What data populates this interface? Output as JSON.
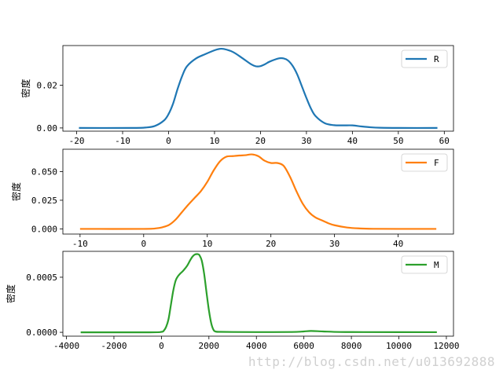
{
  "chart_data": [
    {
      "type": "line",
      "color": "#1f77b4",
      "legend": "R",
      "ylabel": "密度",
      "xlim": [
        -23,
        62
      ],
      "ylim": [
        -0.0015,
        0.0385
      ],
      "xticks": [
        -20,
        -10,
        0,
        10,
        20,
        30,
        40,
        50,
        60
      ],
      "yticks": [
        0.0,
        0.02
      ],
      "ytick_labels": [
        "0.00",
        "0.02"
      ],
      "x": [
        -19.5,
        -8,
        -5,
        -3,
        -1,
        0,
        1,
        2,
        3,
        4,
        6,
        8,
        10,
        11,
        12,
        14,
        16,
        18,
        19,
        20,
        21,
        22,
        24,
        25,
        26,
        27,
        28,
        29,
        30,
        31,
        32,
        34,
        36,
        38,
        40,
        42,
        44,
        46,
        50,
        58.5
      ],
      "y": [
        0.0,
        0.0,
        0.0002,
        0.0009,
        0.0035,
        0.0065,
        0.0115,
        0.0185,
        0.0245,
        0.0288,
        0.0325,
        0.0345,
        0.0363,
        0.0369,
        0.0369,
        0.0355,
        0.0327,
        0.0297,
        0.0288,
        0.0289,
        0.0298,
        0.031,
        0.0325,
        0.0325,
        0.0315,
        0.029,
        0.025,
        0.0195,
        0.014,
        0.009,
        0.0055,
        0.0022,
        0.0013,
        0.0012,
        0.0012,
        0.0007,
        0.0003,
        0.0001,
        0.0,
        0.0
      ]
    },
    {
      "type": "line",
      "color": "#ff7f0e",
      "legend": "F",
      "ylabel": "密度",
      "xlim": [
        -12.7,
        48.7
      ],
      "ylim": [
        -0.0045,
        0.0695
      ],
      "xticks": [
        -10,
        0,
        10,
        20,
        30,
        40
      ],
      "yticks": [
        0.0,
        0.025,
        0.05
      ],
      "ytick_labels": [
        "0.000",
        "0.025",
        "0.050"
      ],
      "x": [
        -10,
        0,
        2,
        3,
        4,
        5,
        6,
        7,
        8,
        9,
        10,
        11,
        12,
        13,
        14,
        15,
        16,
        17,
        18,
        19,
        20,
        21,
        22,
        23,
        24,
        25,
        26,
        27,
        28,
        29,
        30,
        32,
        34,
        36,
        40,
        46
      ],
      "y": [
        0.0,
        0.0,
        0.0005,
        0.0015,
        0.0035,
        0.008,
        0.0145,
        0.021,
        0.027,
        0.033,
        0.041,
        0.051,
        0.059,
        0.063,
        0.0635,
        0.064,
        0.0643,
        0.065,
        0.0635,
        0.0595,
        0.0575,
        0.0575,
        0.055,
        0.0455,
        0.033,
        0.022,
        0.0145,
        0.01,
        0.0075,
        0.005,
        0.0032,
        0.0012,
        0.0004,
        0.0001,
        0.0,
        0.0
      ]
    },
    {
      "type": "line",
      "color": "#2ca02c",
      "legend": "M",
      "ylabel": "密度",
      "xlim": [
        -4150,
        12300
      ],
      "ylim": [
        -3.5e-05,
        0.000735
      ],
      "xticks": [
        -4000,
        -2000,
        0,
        2000,
        4000,
        6000,
        8000,
        10000,
        12000
      ],
      "yticks": [
        0.0,
        0.0005
      ],
      "ytick_labels": [
        "0.0000",
        "0.0005"
      ],
      "x": [
        -3400,
        -500,
        0,
        100,
        200,
        300,
        400,
        500,
        600,
        700,
        800,
        900,
        1000,
        1100,
        1200,
        1300,
        1400,
        1500,
        1550,
        1600,
        1700,
        1800,
        1900,
        2000,
        2100,
        2200,
        2300,
        2500,
        3000,
        4000,
        5500,
        6000,
        6300,
        6800,
        7500,
        8500,
        11600
      ],
      "y": [
        0.0,
        0.0,
        4e-06,
        1.5e-05,
        5e-05,
        0.00012,
        0.00025,
        0.00038,
        0.00047,
        0.00051,
        0.000535,
        0.000555,
        0.00058,
        0.00061,
        0.00065,
        0.000685,
        0.000705,
        0.00071,
        0.000708,
        0.0007,
        0.00065,
        0.00053,
        0.00036,
        0.0002,
        8e-05,
        2e-05,
        6e-06,
        4e-06,
        3e-06,
        2e-06,
        3e-06,
        8e-06,
        1.2e-05,
        8e-06,
        3e-06,
        2e-06,
        1e-06
      ]
    }
  ],
  "watermark": "http://blog.csdn.net/u013692888"
}
